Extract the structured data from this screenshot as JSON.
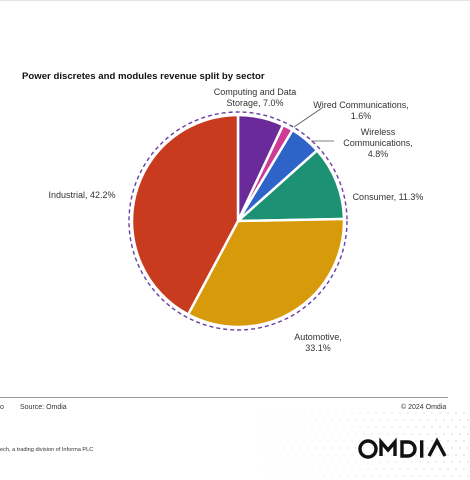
{
  "chart_data": {
    "type": "pie",
    "title": "Power discretes and modules revenue split by sector",
    "slices": [
      {
        "label": "Computing and Data Storage",
        "value": 7.0,
        "display": [
          "Computing and Data",
          "Storage, 7.0%"
        ],
        "color": "#6b2a9a"
      },
      {
        "label": "Wired Communications",
        "value": 1.6,
        "display": [
          "Wired Communications,",
          "1.6%"
        ],
        "color": "#cc3b96"
      },
      {
        "label": "Wireless Communications",
        "value": 4.8,
        "display": [
          "Wireless",
          "Communications,",
          "4.8%"
        ],
        "color": "#2e63c8"
      },
      {
        "label": "Consumer",
        "value": 11.3,
        "display": [
          "Consumer, 11.3%"
        ],
        "color": "#1d9173"
      },
      {
        "label": "Automotive",
        "value": 33.1,
        "display": [
          "Automotive,",
          "33.1%"
        ],
        "color": "#d69a0a"
      },
      {
        "label": "Industrial",
        "value": 42.2,
        "display": [
          "Industrial, 42.2%"
        ],
        "color": "#c83b1e"
      }
    ],
    "start": "12 o'clock",
    "direction": "clockwise",
    "outline": "dashed purple circle"
  },
  "footer": {
    "left_mark": "o",
    "source": "Source: Omdia",
    "copyright": "© 2024 Omdia",
    "company": "ech, a trading division of Informa PLC",
    "logo": "OMDIA"
  },
  "colors": {
    "dashed_ring": "#6b3fa0",
    "dot_field": "#b8b8b8"
  }
}
